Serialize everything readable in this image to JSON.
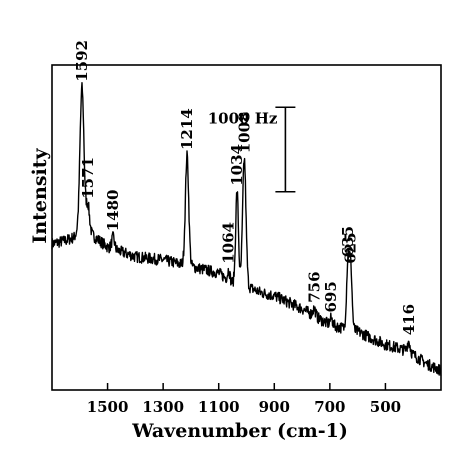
{
  "chart_data": {
    "type": "line",
    "title": "",
    "xlabel": "Wavenumber (cm-1)",
    "ylabel": "Intensity",
    "xlim": [
      1700,
      300
    ],
    "x_reversed": true,
    "y_units": "relative intensity",
    "ylim": [
      0,
      1
    ],
    "grid": false,
    "legend": "none",
    "x_ticks": [
      {
        "value": 1500,
        "label": "1500"
      },
      {
        "value": 1300,
        "label": "1300"
      },
      {
        "value": 1100,
        "label": "1100"
      },
      {
        "value": 900,
        "label": "900"
      },
      {
        "value": 700,
        "label": "700"
      },
      {
        "value": 500,
        "label": "500"
      }
    ],
    "scale_bar": {
      "label": "1000 Hz",
      "x": 860,
      "y_bottom": 0.61,
      "y_top": 0.87
    },
    "baseline": [
      [
        1700,
        0.45
      ],
      [
        1650,
        0.46
      ],
      [
        1620,
        0.47
      ],
      [
        1600,
        0.5
      ],
      [
        1560,
        0.48
      ],
      [
        1500,
        0.44
      ],
      [
        1400,
        0.41
      ],
      [
        1300,
        0.4
      ],
      [
        1200,
        0.38
      ],
      [
        1100,
        0.36
      ],
      [
        1050,
        0.33
      ],
      [
        1000,
        0.32
      ],
      [
        950,
        0.3
      ],
      [
        900,
        0.29
      ],
      [
        800,
        0.25
      ],
      [
        700,
        0.2
      ],
      [
        600,
        0.18
      ],
      [
        500,
        0.14
      ],
      [
        420,
        0.12
      ],
      [
        350,
        0.08
      ],
      [
        300,
        0.06
      ]
    ],
    "peaks": [
      {
        "position": 1592,
        "label": "1592",
        "height": 0.93,
        "width": 7
      },
      {
        "position": 1571,
        "label": "1571",
        "height": 0.57,
        "width": 6
      },
      {
        "position": 1480,
        "label": "1480",
        "height": 0.47,
        "width": 5
      },
      {
        "position": 1214,
        "label": "1214",
        "height": 0.72,
        "width": 6
      },
      {
        "position": 1064,
        "label": "1064",
        "height": 0.37,
        "width": 4
      },
      {
        "position": 1034,
        "label": "1034",
        "height": 0.61,
        "width": 5
      },
      {
        "position": 1008,
        "label": "1008",
        "height": 0.71,
        "width": 6
      },
      {
        "position": 756,
        "label": "756",
        "height": 0.25,
        "width": 5
      },
      {
        "position": 695,
        "label": "695",
        "height": 0.22,
        "width": 5
      },
      {
        "position": 635,
        "label": "635",
        "height": 0.39,
        "width": 5
      },
      {
        "position": 625,
        "label": "625",
        "height": 0.37,
        "width": 5
      },
      {
        "position": 416,
        "label": "416",
        "height": 0.15,
        "width": 5
      }
    ]
  }
}
